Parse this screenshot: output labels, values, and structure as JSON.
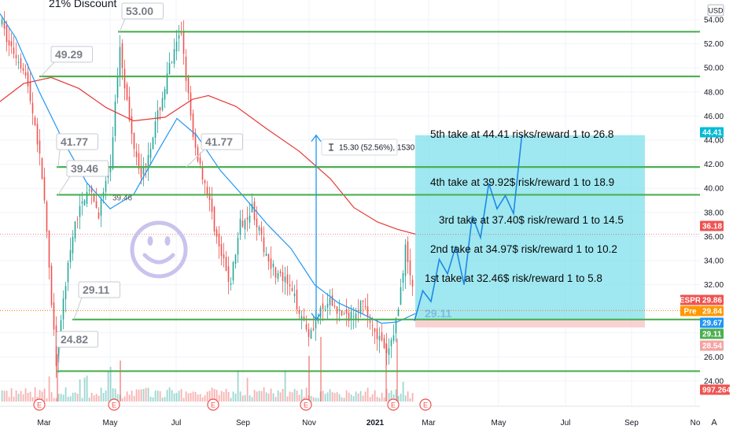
{
  "header": {
    "title": "21% Discount",
    "currency": "USD",
    "corner_icon": "A"
  },
  "chart_data": {
    "type": "candlestick",
    "symbol": "ESPR",
    "currency": "USD",
    "price_axis": {
      "ticks": [
        "54.00",
        "52.00",
        "50.00",
        "48.00",
        "46.00",
        "44.00",
        "42.00",
        "40.00",
        "38.00",
        "36.00",
        "34.00",
        "32.00",
        "30.00",
        "28.00",
        "26.00",
        "24.00"
      ],
      "range": [
        22.5,
        55
      ]
    },
    "time_axis": {
      "ticks": [
        "Mar",
        "May",
        "Jul",
        "Sep",
        "Nov",
        "2021",
        "Mar",
        "May",
        "Jul",
        "Sep",
        "No"
      ]
    },
    "horizontal_levels": [
      {
        "value": 53.0,
        "label": "53.00"
      },
      {
        "value": 49.29,
        "label": "49.29"
      },
      {
        "value": 41.77,
        "label": "41.77"
      },
      {
        "value": 41.77,
        "label": "41.77"
      },
      {
        "value": 39.46,
        "label": "39.46"
      },
      {
        "value": 29.11,
        "label": "29.11"
      },
      {
        "value": 24.82,
        "label": "24.82"
      }
    ],
    "small_level_note": "39.46",
    "faded_level_note": "29.11",
    "take_profit_plan": [
      "5th take at 44.41 risks/reward 1 to 26.8",
      "4th take at 39.92$ risk/reward 1 to 18.9",
      "3rd take at 37.40$ risk/reward 1 to 14.5",
      "2nd take at 34.97$ risk/reward 1 to 10.2",
      "1st take at 32.46$ risk/reward 1 to 5.8"
    ],
    "measurement": {
      "text": "15.30 (52.56%), 1530",
      "from": 29.11,
      "to": 44.41
    },
    "projection_path": [
      29.0,
      31.5,
      30.6,
      34.1,
      32.9,
      35.2,
      32.0,
      37.7,
      35.9,
      40.4,
      38.3,
      39.4,
      37.9,
      44.4
    ],
    "price_tags": [
      {
        "label": "",
        "value": "44.41",
        "color": "#00bcd4"
      },
      {
        "label": "",
        "value": "36.18",
        "color": "#ef5350"
      },
      {
        "label": "ESPR",
        "value": "29.86",
        "color": "#ef5350"
      },
      {
        "label": "Pre",
        "value": "29.84",
        "color": "#ff9800"
      },
      {
        "label": "",
        "value": "29.67",
        "color": "#2196f3"
      },
      {
        "label": "",
        "value": "29.11",
        "color": "#4caf50"
      },
      {
        "label": "",
        "value": "28.54",
        "color": "#f5a3a3",
        "text_color": "#b22222"
      },
      {
        "label": "",
        "value": "997.264K",
        "color": "#ef5350"
      }
    ],
    "earnings_markers": [
      "E",
      "E",
      "E",
      "E",
      "E",
      "E"
    ],
    "colors": {
      "up": "#26a69a",
      "down": "#ef5350",
      "level": "#4caf50",
      "ma_blue": "#2196f3",
      "ma_red": "#e53935",
      "target_zone": "#7fe0ec",
      "risk_zone": "#f8c9c9",
      "emoji": "#c9c3ee"
    },
    "grid": true,
    "emoji_icon": "smiley-face"
  }
}
